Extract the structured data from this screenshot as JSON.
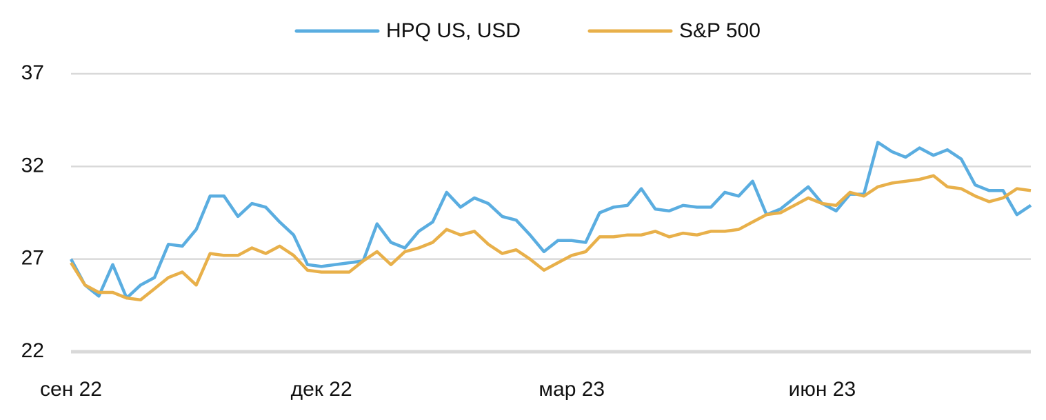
{
  "chart_data": {
    "type": "line",
    "legend_position": "top",
    "grid": true,
    "categories": [
      "сен 22",
      null,
      null,
      null,
      null,
      null,
      null,
      null,
      null,
      null,
      null,
      null,
      null,
      null,
      null,
      null,
      null,
      null,
      "дек 22",
      null,
      null,
      null,
      null,
      null,
      null,
      null,
      null,
      null,
      null,
      null,
      null,
      null,
      null,
      null,
      null,
      null,
      "мар 23",
      null,
      null,
      null,
      null,
      null,
      null,
      null,
      null,
      null,
      null,
      null,
      null,
      null,
      null,
      null,
      null,
      null,
      "июн 23",
      null,
      null,
      null,
      null,
      null,
      null,
      null,
      null,
      null,
      null,
      null,
      null,
      null,
      null,
      null
    ],
    "series": [
      {
        "name": "HPQ US, USD",
        "color": "#5aade0",
        "values": [
          27.0,
          25.6,
          25.0,
          26.7,
          24.9,
          25.6,
          26.0,
          27.8,
          27.7,
          28.6,
          30.4,
          30.4,
          29.3,
          30.0,
          29.8,
          29.0,
          28.3,
          26.7,
          26.6,
          26.7,
          26.8,
          26.9,
          28.9,
          27.9,
          27.6,
          28.5,
          29.0,
          30.6,
          29.8,
          30.3,
          30.0,
          29.3,
          29.1,
          28.3,
          27.4,
          28.0,
          28.0,
          27.9,
          29.5,
          29.8,
          29.9,
          30.8,
          29.7,
          29.6,
          29.9,
          29.8,
          29.8,
          30.6,
          30.4,
          31.2,
          29.4,
          29.7,
          30.3,
          30.9,
          30.0,
          29.6,
          30.5,
          30.5,
          33.3,
          32.8,
          32.5,
          33.0,
          32.6,
          32.9,
          32.4,
          31.0,
          30.7,
          30.7,
          29.4,
          29.9
        ]
      },
      {
        "name": "S&P 500",
        "color": "#e8b04a",
        "values": [
          26.8,
          25.6,
          25.2,
          25.2,
          24.9,
          24.8,
          25.4,
          26.0,
          26.3,
          25.6,
          27.3,
          27.2,
          27.2,
          27.6,
          27.3,
          27.7,
          27.2,
          26.4,
          26.3,
          26.3,
          26.3,
          26.9,
          27.4,
          26.7,
          27.4,
          27.6,
          27.9,
          28.6,
          28.3,
          28.5,
          27.8,
          27.3,
          27.5,
          27.0,
          26.4,
          26.8,
          27.2,
          27.4,
          28.2,
          28.2,
          28.3,
          28.3,
          28.5,
          28.2,
          28.4,
          28.3,
          28.5,
          28.5,
          28.6,
          29.0,
          29.4,
          29.5,
          29.9,
          30.3,
          30.0,
          29.9,
          30.6,
          30.4,
          30.9,
          31.1,
          31.2,
          31.3,
          31.5,
          30.9,
          30.8,
          30.4,
          30.1,
          30.3,
          30.8,
          30.7
        ]
      }
    ],
    "ylim": [
      22,
      37
    ],
    "yticks": [
      22,
      27,
      32,
      37
    ]
  }
}
